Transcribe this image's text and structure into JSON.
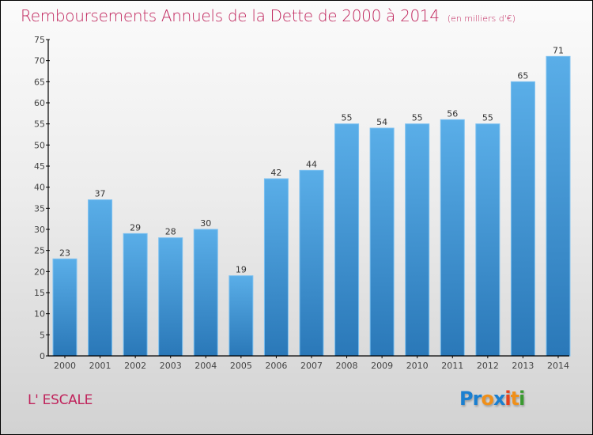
{
  "header": {
    "title": "Remboursements Annuels de la Dette de 2000 à 2014",
    "unit": "(en milliers d'€)"
  },
  "commune": "L' ESCALE",
  "logo": {
    "letters": [
      {
        "char": "P",
        "color": "#1a7fd0"
      },
      {
        "char": "r",
        "color": "#1a7fd0"
      },
      {
        "char": "o",
        "color": "#f0901a"
      },
      {
        "char": "x",
        "color": "#1a7fd0"
      },
      {
        "char": "i",
        "color": "#e8401a"
      },
      {
        "char": "t",
        "color": "#f0901a"
      },
      {
        "char": "i",
        "color": "#3a9a30"
      }
    ]
  },
  "colors": {
    "accent": "#c0245c",
    "bar_top": "#5aaee8",
    "bar_bottom": "#2a78b8",
    "bar_edge": "#7cc0f0"
  },
  "chart_data": {
    "type": "bar",
    "title": "Remboursements Annuels de la Dette de 2000 à 2014",
    "subtitle": "(en milliers d'€)",
    "xlabel": "",
    "ylabel": "",
    "categories": [
      "2000",
      "2001",
      "2002",
      "2003",
      "2004",
      "2005",
      "2006",
      "2007",
      "2008",
      "2009",
      "2010",
      "2011",
      "2012",
      "2013",
      "2014"
    ],
    "values": [
      23,
      37,
      29,
      28,
      30,
      19,
      42,
      44,
      55,
      54,
      55,
      56,
      55,
      65,
      71
    ],
    "ylim": [
      0,
      75
    ],
    "yticks": [
      0,
      5,
      10,
      15,
      20,
      25,
      30,
      35,
      40,
      45,
      50,
      55,
      60,
      65,
      70,
      75
    ],
    "grid": false,
    "legend": "none",
    "data_labels": true
  }
}
